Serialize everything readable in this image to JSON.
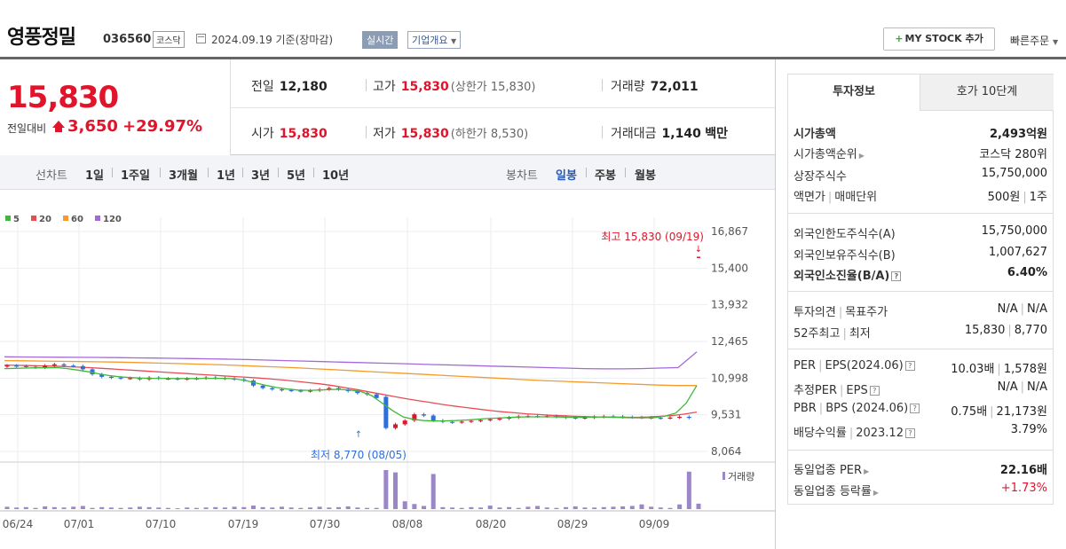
{
  "header": {
    "name": "영풍정밀",
    "code": "036560",
    "market": "코스닥",
    "date": "2024.09.19  기준(장마감)",
    "realtime": "실시간",
    "company_info": "기업개요",
    "mystock": "MY STOCK 추가",
    "quick_order": "빠른주문"
  },
  "summary": {
    "price": "15,830",
    "change_label": "전일대비",
    "change": "3,650",
    "change_pct": "+29.97%",
    "prev_close": {
      "label": "전일",
      "value": "12,180"
    },
    "high": {
      "label": "고가",
      "value": "15,830",
      "sub": "(상한가 15,830)"
    },
    "volume": {
      "label": "거래량",
      "value": "72,011"
    },
    "open": {
      "label": "시가",
      "value": "15,830"
    },
    "low": {
      "label": "저가",
      "value": "15,830",
      "sub": "(하한가 8,530)"
    },
    "amount": {
      "label": "거래대금",
      "value": "1,140",
      "unit": "백만"
    }
  },
  "period": {
    "line_label": "선차트",
    "line_items": [
      "1일",
      "1주일",
      "3개월",
      "1년",
      "3년",
      "5년",
      "10년"
    ],
    "candle_label": "봉차트",
    "candle_items": [
      "일봉",
      "주봉",
      "월봉"
    ],
    "active_candle": "일봉"
  },
  "chart_data": {
    "type": "candlestick",
    "legend": [
      {
        "name": "5",
        "color": "#3fb83a"
      },
      {
        "name": "20",
        "color": "#e94b55"
      },
      {
        "name": "60",
        "color": "#f59a2b"
      },
      {
        "name": "120",
        "color": "#a369d8"
      }
    ],
    "y_ticks": [
      "16,867",
      "15,400",
      "13,932",
      "12,465",
      "10,998",
      "9,531",
      "8,064"
    ],
    "ylim": [
      8064,
      16867
    ],
    "x_ticks": [
      "06/24",
      "07/01",
      "07/10",
      "07/19",
      "07/30",
      "08/08",
      "08/20",
      "08/29",
      "09/09"
    ],
    "max_annotation": "최고 15,830 (09/19)",
    "min_annotation": "최저 8,770 (08/05)",
    "volume_label": "거래량",
    "closes": [
      11500,
      11480,
      11450,
      11420,
      11500,
      11550,
      11500,
      11480,
      11350,
      11150,
      11050,
      11020,
      10990,
      11000,
      10950,
      11020,
      10980,
      10980,
      10960,
      10980,
      10990,
      11020,
      11000,
      10980,
      10950,
      10900,
      10700,
      10600,
      10550,
      10520,
      10500,
      10480,
      10500,
      10550,
      10600,
      10550,
      10480,
      10400,
      10350,
      10200,
      9000,
      9150,
      9300,
      9550,
      9500,
      9300,
      9250,
      9230,
      9260,
      9290,
      9320,
      9350,
      9380,
      9420,
      9470,
      9480,
      9470,
      9480,
      9450,
      9420,
      9400,
      9420,
      9450,
      9470,
      9460,
      9440,
      9430,
      9420,
      9410,
      9400,
      9420,
      9450,
      9410,
      15830
    ],
    "ma5": [
      11380,
      11390,
      11400,
      11410,
      11410,
      11420,
      11380,
      11320,
      11250,
      11170,
      11100,
      11050,
      11020,
      11000,
      10990,
      10990,
      10980,
      10980,
      10980,
      10990,
      10990,
      10990,
      10970,
      10900,
      10800,
      10700,
      10620,
      10560,
      10520,
      10510,
      10520,
      10540,
      10550,
      10520,
      10460,
      10300,
      10000,
      9700,
      9450,
      9350,
      9300,
      9280,
      9290,
      9300,
      9320,
      9350,
      9380,
      9400,
      9420,
      9440,
      9450,
      9450,
      9450,
      9440,
      9430,
      9430,
      9440,
      9440,
      9430,
      9420,
      9410,
      9410,
      9420,
      9480,
      9600,
      10000,
      10700
    ],
    "ma20": [
      11520,
      11510,
      11500,
      11490,
      11480,
      11460,
      11440,
      11420,
      11390,
      11360,
      11330,
      11300,
      11270,
      11240,
      11210,
      11180,
      11150,
      11120,
      11090,
      11060,
      11030,
      11000,
      10960,
      10920,
      10870,
      10820,
      10770,
      10700,
      10620,
      10540,
      10450,
      10360,
      10270,
      10180,
      10100,
      10030,
      9950,
      9880,
      9820,
      9760,
      9700,
      9650,
      9610,
      9570,
      9540,
      9510,
      9490,
      9470,
      9455,
      9445,
      9440,
      9435,
      9430,
      9440,
      9470,
      9500,
      9560,
      9640
    ],
    "ma60": [
      11700,
      11690,
      11680,
      11670,
      11660,
      11650,
      11640,
      11620,
      11600,
      11580,
      11560,
      11540,
      11510,
      11480,
      11450,
      11420,
      11380,
      11340,
      11300,
      11260,
      11220,
      11180,
      11140,
      11100,
      11060,
      11020,
      10980,
      10940,
      10900,
      10870,
      10840,
      10810,
      10780,
      10750,
      10720,
      10700,
      10700
    ],
    "ma120": [
      11850,
      11845,
      11840,
      11835,
      11830,
      11825,
      11820,
      11810,
      11800,
      11790,
      11780,
      11770,
      11755,
      11740,
      11720,
      11700,
      11680,
      11660,
      11640,
      11620,
      11600,
      11580,
      11560,
      11540,
      11520,
      11500,
      11480,
      11460,
      11440,
      11420,
      11400,
      11380,
      11370,
      11370,
      11380,
      11400,
      11420,
      12050
    ],
    "volumes": [
      6,
      4,
      5,
      3,
      7,
      5,
      4,
      6,
      8,
      3,
      5,
      4,
      3,
      4,
      6,
      5,
      4,
      3,
      2,
      4,
      3,
      4,
      5,
      4,
      6,
      5,
      9,
      5,
      4,
      6,
      4,
      3,
      4,
      6,
      4,
      5,
      7,
      4,
      3,
      3,
      100,
      94,
      20,
      13,
      8,
      90,
      5,
      4,
      3,
      5,
      4,
      9,
      4,
      5,
      3,
      6,
      8,
      4,
      3,
      5,
      7,
      4,
      4,
      5,
      6,
      7,
      8,
      12,
      6,
      4,
      3,
      12,
      96,
      14
    ]
  },
  "info": {
    "tab_active": "투자정보",
    "tab_inactive": "호가 10단계",
    "market_cap": {
      "label": "시가총액",
      "value": "2,493억원"
    },
    "cap_rank": {
      "label": "시가총액순위",
      "value": "코스닥 280위"
    },
    "shares": {
      "label": "상장주식수",
      "value": "15,750,000"
    },
    "par": {
      "label1": "액면가",
      "label2": "매매단위",
      "value1": "500원",
      "value2": "1주"
    },
    "foreign_limit": {
      "label": "외국인한도주식수(A)",
      "value": "15,750,000"
    },
    "foreign_hold": {
      "label": "외국인보유주식수(B)",
      "value": "1,007,627"
    },
    "foreign_ratio": {
      "label": "외국인소진율(B/A)",
      "value": "6.40%"
    },
    "opinion": {
      "label1": "투자의견",
      "label2": "목표주가",
      "value1": "N/A",
      "value2": "N/A"
    },
    "week52": {
      "label1": "52주최고",
      "label2": "최저",
      "value1": "15,830",
      "value2": "8,770"
    },
    "per": {
      "label1": "PER",
      "label2": "EPS(2024.06)",
      "value1": "10.03배",
      "value2": "1,578원"
    },
    "est_per": {
      "label1": "추정PER",
      "label2": "EPS",
      "value1": "N/A",
      "value2": "N/A"
    },
    "pbr": {
      "label1": "PBR",
      "label2": "BPS (2024.06)",
      "value1": "0.75배",
      "value2": "21,173원"
    },
    "dividend": {
      "label1": "배당수익률",
      "label2": "2023.12",
      "value": "3.79%"
    },
    "sector_per": {
      "label": "동일업종 PER",
      "value": "22.16배"
    },
    "sector_chg": {
      "label": "동일업종 등락률",
      "value": "+1.73%"
    }
  }
}
